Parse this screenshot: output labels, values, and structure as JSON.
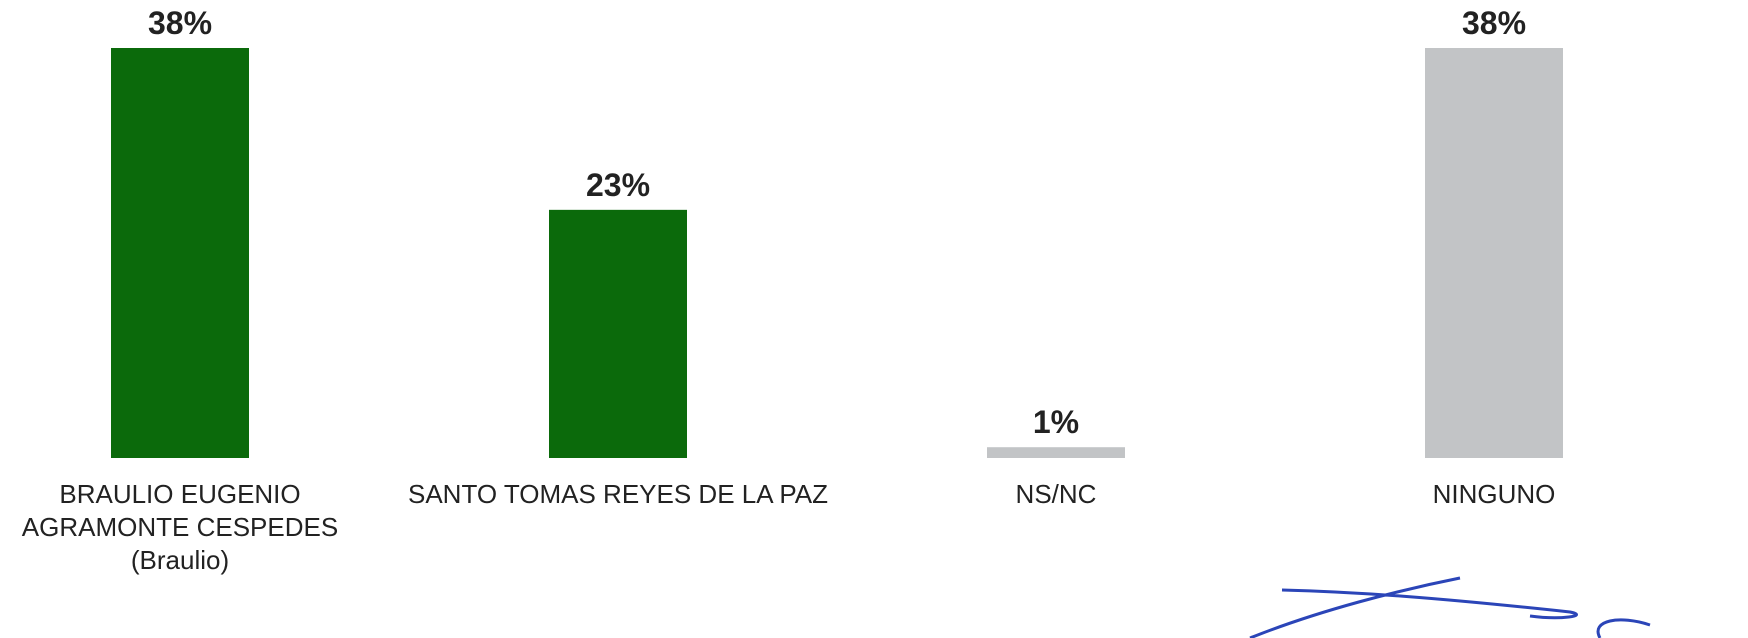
{
  "chart_data": {
    "type": "bar",
    "categories": [
      "BRAULIO EUGENIO AGRAMONTE CESPEDES (Braulio)",
      "SANTO TOMAS REYES DE LA PAZ",
      "NS/NC",
      "NINGUNO"
    ],
    "values": [
      38,
      23,
      1,
      38
    ],
    "value_labels": [
      "38%",
      "23%",
      "1%",
      "38%"
    ],
    "colors": [
      "#0b6a0b",
      "#0b6a0b",
      "#c2c4c6",
      "#c2c4c6"
    ]
  }
}
